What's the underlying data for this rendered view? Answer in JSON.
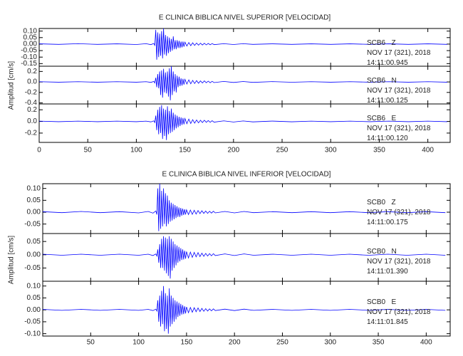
{
  "chart_data": [
    {
      "type": "line",
      "title": "E CLINICA BIBLICA NIVEL SUPERIOR [VELOCIDAD]",
      "ylabel": "Amplitud [cm/s]",
      "xlim": [
        0,
        423
      ],
      "xticks": [
        0,
        50,
        100,
        150,
        200,
        250,
        300,
        350,
        400
      ],
      "x": [
        0,
        20,
        40,
        60,
        80,
        100,
        110,
        115,
        118,
        119,
        120,
        121,
        122,
        123,
        124,
        125,
        126,
        127,
        128,
        129,
        130,
        131,
        132,
        133,
        134,
        135,
        136,
        137,
        138,
        139,
        140,
        141,
        142,
        143,
        144,
        145,
        146,
        147,
        148,
        149,
        150,
        152,
        154,
        156,
        158,
        160,
        162,
        164,
        166,
        168,
        170,
        172,
        174,
        176,
        178,
        180,
        190,
        200,
        210,
        220,
        240,
        260,
        280,
        300,
        320,
        340,
        360,
        380,
        400,
        420
      ],
      "series": [
        {
          "name": "SCB6   Z",
          "color": "#0000ff",
          "annotations": [
            "NOV 17 (321), 2018",
            "14:11:00.945"
          ],
          "ylim": [
            -0.17,
            0.12
          ],
          "yticks": [
            {
              "value": 0.1,
              "label": "0.10"
            },
            0.05,
            {
              "value": 0,
              "label": "0.00"
            },
            -0.05,
            {
              "value": -0.1,
              "label": "-0.10"
            },
            -0.15
          ],
          "values": [
            0.002,
            -0.002,
            0.003,
            -0.002,
            0.002,
            -0.003,
            0.003,
            -0.004,
            0.005,
            -0.01,
            0.11,
            -0.12,
            0.09,
            -0.1,
            0.08,
            -0.09,
            0.1,
            -0.11,
            0.12,
            -0.08,
            0.07,
            -0.09,
            0.06,
            -0.07,
            0.05,
            -0.06,
            0.04,
            -0.05,
            0.06,
            -0.04,
            0.03,
            -0.04,
            0.03,
            -0.03,
            0.025,
            -0.03,
            0.02,
            -0.025,
            0.02,
            -0.02,
            0.015,
            -0.015,
            0.012,
            -0.012,
            0.01,
            -0.01,
            0.008,
            -0.008,
            0.007,
            -0.007,
            0.006,
            -0.006,
            0.005,
            -0.005,
            0.004,
            -0.004,
            0.003,
            -0.003,
            0.003,
            -0.002,
            0.002,
            -0.002,
            0.002,
            -0.002,
            0.002,
            -0.002,
            0.002,
            -0.002,
            0.002,
            -0.002
          ]
        },
        {
          "name": "SCB6   N",
          "color": "#0000ff",
          "annotations": [
            "NOV 17 (321), 2018",
            "14:11:00.125"
          ],
          "ylim": [
            -0.42,
            0.3
          ],
          "yticks": [
            0.2,
            {
              "value": 0,
              "label": "0.0"
            },
            -0.2,
            -0.4
          ],
          "values": [
            0.005,
            -0.005,
            0.005,
            -0.005,
            0.005,
            -0.005,
            0.005,
            -0.008,
            0.01,
            -0.02,
            0.08,
            -0.1,
            0.15,
            -0.12,
            0.2,
            -0.25,
            0.22,
            -0.3,
            0.25,
            -0.2,
            0.18,
            -0.22,
            0.2,
            -0.28,
            0.26,
            -0.35,
            0.3,
            -0.25,
            0.2,
            -0.18,
            0.15,
            -0.2,
            0.12,
            -0.1,
            0.1,
            -0.08,
            0.07,
            -0.07,
            0.06,
            -0.05,
            0.05,
            -0.04,
            0.04,
            -0.035,
            0.03,
            -0.03,
            0.025,
            -0.025,
            0.02,
            -0.02,
            0.02,
            -0.015,
            0.015,
            -0.015,
            0.012,
            -0.012,
            0.01,
            -0.01,
            0.008,
            -0.008,
            0.006,
            -0.006,
            0.005,
            -0.005,
            0.005,
            -0.005,
            0.005,
            -0.005,
            0.005,
            -0.005
          ]
        },
        {
          "name": "SCB6   E",
          "color": "#0000ff",
          "annotations": [
            "NOV 17 (321), 2018",
            "14:11:00.120"
          ],
          "ylim": [
            -0.36,
            0.3
          ],
          "yticks": [
            0.2,
            {
              "value": 0,
              "label": "0.0"
            },
            -0.2
          ],
          "values": [
            0.005,
            -0.005,
            0.005,
            -0.005,
            0.005,
            -0.005,
            0.005,
            -0.008,
            0.01,
            -0.02,
            0.1,
            -0.15,
            0.2,
            -0.22,
            0.25,
            -0.2,
            0.28,
            -0.3,
            0.22,
            -0.25,
            0.2,
            -0.32,
            0.26,
            -0.22,
            0.18,
            -0.2,
            0.22,
            -0.18,
            0.15,
            -0.15,
            0.12,
            -0.12,
            0.1,
            -0.1,
            0.08,
            -0.08,
            0.07,
            -0.06,
            0.06,
            -0.05,
            0.05,
            -0.04,
            0.04,
            -0.035,
            0.03,
            -0.03,
            0.025,
            -0.025,
            0.02,
            -0.02,
            0.02,
            -0.015,
            0.015,
            -0.015,
            0.012,
            -0.012,
            0.01,
            -0.01,
            0.008,
            -0.008,
            0.006,
            -0.006,
            0.005,
            -0.005,
            0.005,
            -0.005,
            0.005,
            -0.005,
            0.005,
            -0.005
          ]
        }
      ]
    },
    {
      "type": "line",
      "title": "E CLINICA BIBLICA NIVEL INFERIOR [VELOCIDAD]",
      "ylabel": "Amplitud [cm/s]",
      "xlim": [
        0,
        425
      ],
      "xticks": [
        50,
        100,
        150,
        200,
        250,
        300,
        350,
        400
      ],
      "x": [
        0,
        20,
        40,
        60,
        80,
        100,
        110,
        115,
        118,
        119,
        120,
        121,
        122,
        123,
        124,
        125,
        126,
        127,
        128,
        129,
        130,
        131,
        132,
        133,
        134,
        135,
        136,
        137,
        138,
        139,
        140,
        141,
        142,
        143,
        144,
        145,
        146,
        147,
        148,
        149,
        150,
        152,
        154,
        156,
        158,
        160,
        162,
        164,
        166,
        168,
        170,
        172,
        174,
        176,
        178,
        180,
        190,
        200,
        210,
        220,
        240,
        260,
        280,
        300,
        320,
        340,
        360,
        380,
        400,
        420
      ],
      "series": [
        {
          "name": "SCB0   Z",
          "color": "#0000ff",
          "annotations": [
            "NOV 17 (321), 2018",
            "14:11:00.175"
          ],
          "ylim": [
            -0.09,
            0.12
          ],
          "yticks": [
            {
              "value": 0.1,
              "label": "0.10"
            },
            0.05,
            {
              "value": 0,
              "label": "0.00"
            },
            -0.05
          ],
          "values": [
            0.002,
            -0.002,
            0.003,
            -0.002,
            0.002,
            -0.003,
            0.003,
            -0.004,
            0.005,
            -0.01,
            0.1,
            -0.08,
            0.12,
            -0.07,
            0.09,
            -0.06,
            0.1,
            -0.05,
            0.08,
            -0.06,
            0.07,
            -0.05,
            0.05,
            -0.04,
            0.04,
            -0.035,
            0.035,
            -0.03,
            0.03,
            -0.025,
            0.025,
            -0.02,
            0.02,
            -0.02,
            0.018,
            -0.015,
            0.015,
            -0.012,
            0.012,
            -0.01,
            0.01,
            -0.01,
            0.009,
            -0.009,
            0.008,
            -0.008,
            0.007,
            -0.006,
            0.006,
            -0.005,
            0.005,
            -0.005,
            0.004,
            -0.004,
            0.004,
            -0.003,
            0.003,
            -0.003,
            0.003,
            -0.002,
            0.002,
            -0.002,
            0.002,
            -0.002,
            0.002,
            -0.002,
            0.002,
            -0.002,
            0.002,
            -0.002
          ]
        },
        {
          "name": "SCB0   N",
          "color": "#0000ff",
          "annotations": [
            "NOV 17 (321), 2018",
            "14:11:01.390"
          ],
          "ylim": [
            -0.1,
            0.08
          ],
          "yticks": [
            0.05,
            {
              "value": 0,
              "label": "0.00"
            },
            -0.05
          ],
          "values": [
            0.002,
            -0.002,
            0.002,
            -0.002,
            0.002,
            -0.002,
            0.002,
            -0.003,
            0.003,
            -0.005,
            0.02,
            -0.03,
            0.04,
            -0.05,
            0.06,
            -0.05,
            0.07,
            -0.06,
            0.065,
            -0.07,
            0.06,
            -0.08,
            0.07,
            -0.09,
            0.06,
            -0.06,
            0.05,
            -0.05,
            0.04,
            -0.04,
            0.035,
            -0.03,
            0.03,
            -0.025,
            0.025,
            -0.02,
            0.02,
            -0.018,
            0.015,
            -0.015,
            0.012,
            -0.012,
            0.01,
            -0.01,
            0.009,
            -0.008,
            0.008,
            -0.007,
            0.006,
            -0.006,
            0.005,
            -0.005,
            0.004,
            -0.004,
            0.004,
            -0.003,
            0.003,
            -0.003,
            0.003,
            -0.002,
            0.002,
            -0.002,
            0.002,
            -0.002,
            0.002,
            -0.002,
            0.002,
            -0.002,
            0.002,
            -0.002
          ]
        },
        {
          "name": "SCB0   E",
          "color": "#0000ff",
          "annotations": [
            "NOV 17 (321), 2018",
            "14:11:01.845"
          ],
          "ylim": [
            -0.11,
            0.12
          ],
          "yticks": [
            {
              "value": 0.1,
              "label": "0.10"
            },
            0.05,
            {
              "value": 0,
              "label": "0.00"
            },
            -0.05,
            {
              "value": -0.1,
              "label": "-0.10"
            }
          ],
          "values": [
            0.002,
            -0.002,
            0.002,
            -0.002,
            0.002,
            -0.002,
            0.002,
            -0.003,
            0.003,
            -0.005,
            0.04,
            -0.05,
            0.06,
            -0.07,
            0.08,
            -0.06,
            0.1,
            -0.09,
            0.07,
            -0.08,
            0.06,
            -0.1,
            0.09,
            -0.07,
            0.06,
            -0.06,
            0.05,
            -0.05,
            0.04,
            -0.04,
            0.035,
            -0.03,
            0.03,
            -0.025,
            0.025,
            -0.02,
            0.02,
            -0.018,
            0.015,
            -0.015,
            0.012,
            -0.012,
            0.01,
            -0.01,
            0.009,
            -0.008,
            0.008,
            -0.007,
            0.006,
            -0.006,
            0.005,
            -0.005,
            0.004,
            -0.004,
            0.004,
            -0.003,
            0.003,
            -0.003,
            0.003,
            -0.002,
            0.002,
            -0.002,
            0.002,
            -0.002,
            0.002,
            -0.002,
            0.002,
            -0.002,
            0.002,
            -0.002
          ]
        }
      ]
    }
  ]
}
